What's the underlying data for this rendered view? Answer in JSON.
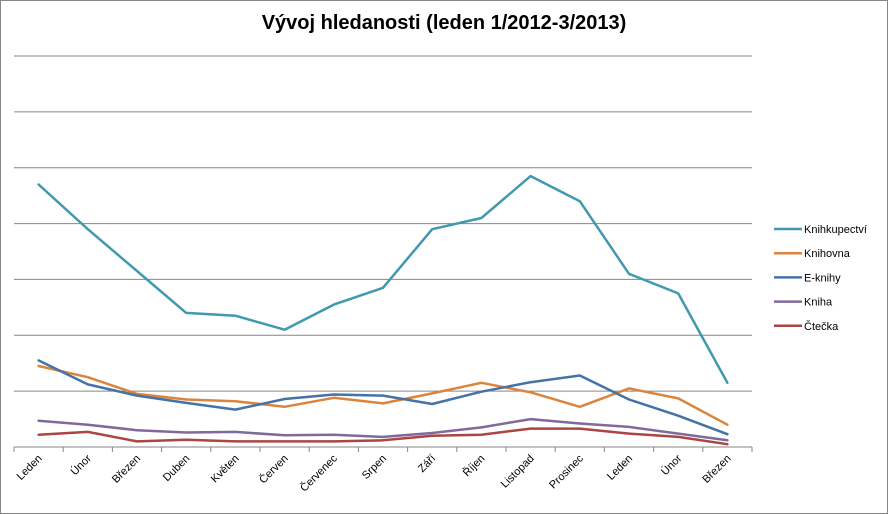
{
  "chart_data": {
    "type": "line",
    "title": "Vývoj hledanosti (leden 1/2012-3/2013)",
    "xlabel": "",
    "ylabel": "",
    "ylim": [
      0,
      7
    ],
    "grid": true,
    "legend": "right",
    "categories": [
      "Leden",
      "Únor",
      "Březen",
      "Duben",
      "Květen",
      "Červen",
      "Červenec",
      "Srpen",
      "Září",
      "Říjen",
      "Listopad",
      "Prosinec",
      "Leden",
      "Únor",
      "Březen"
    ],
    "series": [
      {
        "name": "Knihkupectví",
        "color": "#4198AF",
        "values": [
          4.7,
          3.9,
          3.15,
          2.4,
          2.35,
          2.1,
          2.55,
          2.85,
          3.9,
          4.1,
          4.85,
          4.4,
          3.1,
          2.75,
          1.15
        ]
      },
      {
        "name": "Knihovna",
        "color": "#DB843D",
        "values": [
          1.45,
          1.25,
          0.95,
          0.85,
          0.82,
          0.72,
          0.88,
          0.78,
          0.96,
          1.15,
          0.98,
          0.72,
          1.05,
          0.87,
          0.4
        ]
      },
      {
        "name": "E-knihy",
        "color": "#4572A7",
        "values": [
          1.55,
          1.12,
          0.92,
          0.79,
          0.67,
          0.86,
          0.94,
          0.92,
          0.77,
          0.99,
          1.16,
          1.28,
          0.85,
          0.56,
          0.23
        ]
      },
      {
        "name": "Kniha",
        "color": "#80699B",
        "values": [
          0.47,
          0.4,
          0.3,
          0.26,
          0.27,
          0.21,
          0.22,
          0.18,
          0.25,
          0.35,
          0.5,
          0.42,
          0.36,
          0.24,
          0.12
        ]
      },
      {
        "name": "Čtečka",
        "color": "#AA4643",
        "values": [
          0.22,
          0.27,
          0.1,
          0.13,
          0.1,
          0.1,
          0.1,
          0.12,
          0.2,
          0.22,
          0.33,
          0.33,
          0.24,
          0.18,
          0.05
        ]
      }
    ]
  }
}
